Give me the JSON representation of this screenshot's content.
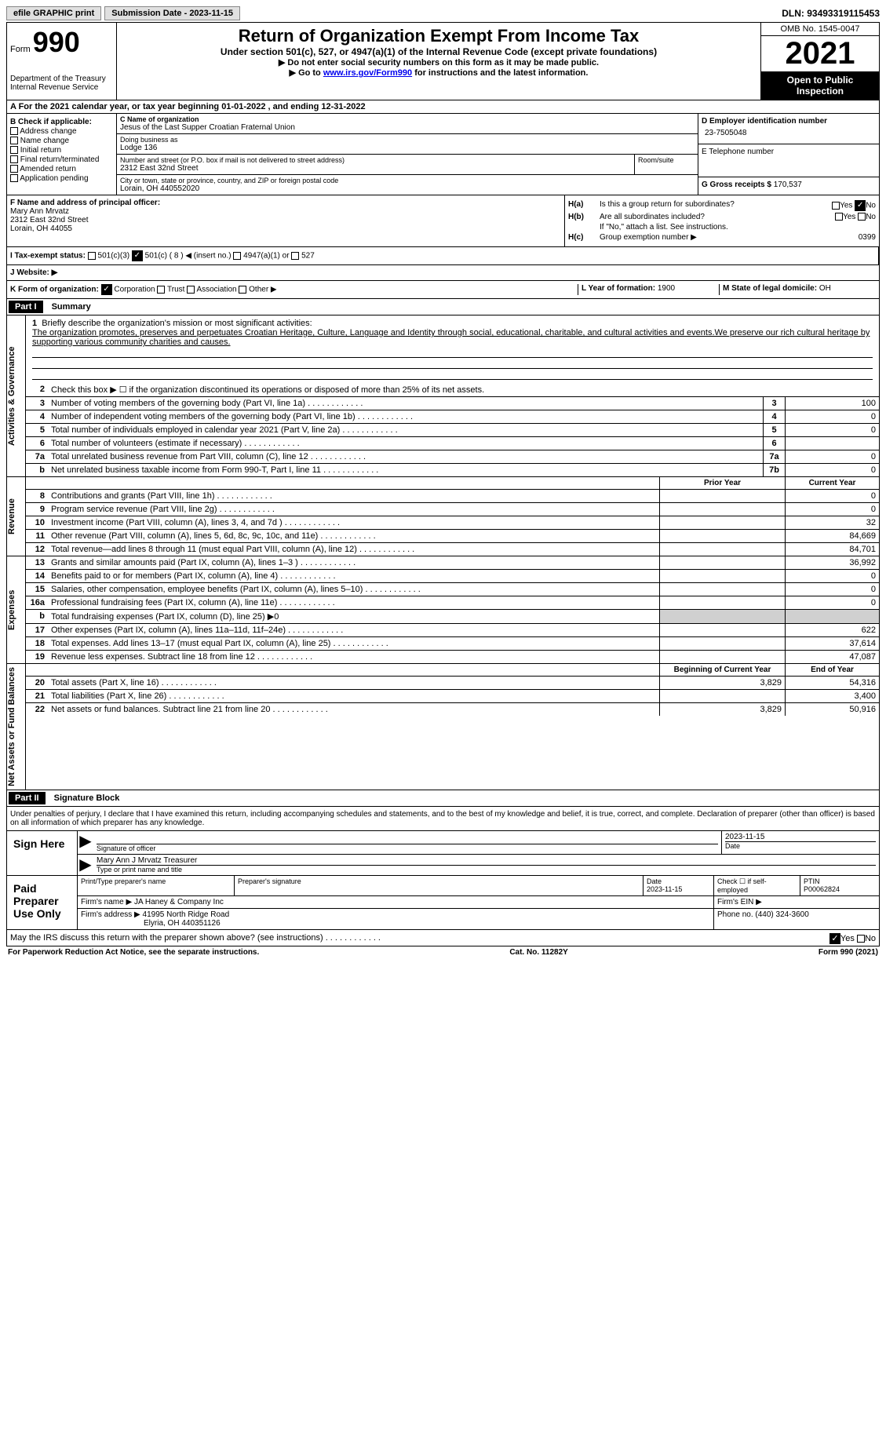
{
  "topbar": {
    "efile": "efile GRAPHIC print",
    "sub_date_label": "Submission Date - 2023-11-15",
    "dln": "DLN: 93493319115453"
  },
  "header": {
    "form_label": "Form",
    "form_number": "990",
    "title": "Return of Organization Exempt From Income Tax",
    "subtitle": "Under section 501(c), 527, or 4947(a)(1) of the Internal Revenue Code (except private foundations)",
    "instruction1": "▶ Do not enter social security numbers on this form as it may be made public.",
    "instruction2_pre": "▶ Go to ",
    "instruction2_link": "www.irs.gov/Form990",
    "instruction2_post": " for instructions and the latest information.",
    "dept": "Department of the Treasury",
    "irs": "Internal Revenue Service",
    "omb": "OMB No. 1545-0047",
    "year": "2021",
    "inspection": "Open to Public Inspection"
  },
  "row_a": "A For the 2021 calendar year, or tax year beginning 01-01-2022   , and ending 12-31-2022",
  "section_b": {
    "label": "B Check if applicable:",
    "addr": "Address change",
    "name": "Name change",
    "initial": "Initial return",
    "final": "Final return/terminated",
    "amended": "Amended return",
    "app": "Application pending"
  },
  "section_c": {
    "name_label": "C Name of organization",
    "org_name": "Jesus of the Last Supper Croatian Fraternal Union",
    "dba_label": "Doing business as",
    "dba": "Lodge 136",
    "street_label": "Number and street (or P.O. box if mail is not delivered to street address)",
    "street": "2312 East 32nd Street",
    "room_label": "Room/suite",
    "city_label": "City or town, state or province, country, and ZIP or foreign postal code",
    "city": "Lorain, OH  440552020"
  },
  "section_d": {
    "ein_label": "D Employer identification number",
    "ein": "23-7505048",
    "phone_label": "E Telephone number",
    "receipts_label": "G Gross receipts $",
    "receipts": "170,537"
  },
  "section_f": {
    "label": "F Name and address of principal officer:",
    "name": "Mary Ann Mrvatz",
    "street": "2312 East 32nd Street",
    "city": "Lorain, OH  44055"
  },
  "section_h": {
    "ha": "H(a)",
    "ha_text": "Is this a group return for subordinates?",
    "hb": "H(b)",
    "hb_text": "Are all subordinates included?",
    "hb_note": "If \"No,\" attach a list. See instructions.",
    "hc": "H(c)",
    "hc_text": "Group exemption number ▶",
    "hc_val": "0399",
    "yes": "Yes",
    "no": "No"
  },
  "row_i": {
    "label": "I    Tax-exempt status:",
    "opt1": "501(c)(3)",
    "opt2": "501(c) ( 8 ) ◀ (insert no.)",
    "opt3": "4947(a)(1) or",
    "opt4": "527"
  },
  "row_j": "J    Website: ▶",
  "row_k": {
    "label": "K Form of organization:",
    "corp": "Corporation",
    "trust": "Trust",
    "assoc": "Association",
    "other": "Other ▶",
    "l_label": "L Year of formation:",
    "l_val": "1900",
    "m_label": "M State of legal domicile:",
    "m_val": "OH"
  },
  "part1": {
    "label": "Part I",
    "title": "Summary",
    "q1": "Briefly describe the organization's mission or most significant activities:",
    "mission": "The organization promotes, preserves and perpetuates Croatian Heritage, Culture, Language and Identity through social, educational, charitable, and cultural activities and events.We preserve our rich cultural heritage by supporting various community charities and causes.",
    "q2": "Check this box ▶ ☐ if the organization discontinued its operations or disposed of more than 25% of its net assets.",
    "rows_nums": [
      {
        "n": "3",
        "d": "Number of voting members of the governing body (Part VI, line 1a)",
        "b": "3",
        "v": "100"
      },
      {
        "n": "4",
        "d": "Number of independent voting members of the governing body (Part VI, line 1b)",
        "b": "4",
        "v": "0"
      },
      {
        "n": "5",
        "d": "Total number of individuals employed in calendar year 2021 (Part V, line 2a)",
        "b": "5",
        "v": "0"
      },
      {
        "n": "6",
        "d": "Total number of volunteers (estimate if necessary)",
        "b": "6",
        "v": ""
      },
      {
        "n": "7a",
        "d": "Total unrelated business revenue from Part VIII, column (C), line 12",
        "b": "7a",
        "v": "0"
      },
      {
        "n": "b",
        "d": "Net unrelated business taxable income from Form 990-T, Part I, line 11",
        "b": "7b",
        "v": "0"
      }
    ],
    "prior_label": "Prior Year",
    "current_label": "Current Year",
    "begin_label": "Beginning of Current Year",
    "end_label": "End of Year",
    "revenue": [
      {
        "n": "8",
        "d": "Contributions and grants (Part VIII, line 1h)",
        "p": "",
        "c": "0"
      },
      {
        "n": "9",
        "d": "Program service revenue (Part VIII, line 2g)",
        "p": "",
        "c": "0"
      },
      {
        "n": "10",
        "d": "Investment income (Part VIII, column (A), lines 3, 4, and 7d )",
        "p": "",
        "c": "32"
      },
      {
        "n": "11",
        "d": "Other revenue (Part VIII, column (A), lines 5, 6d, 8c, 9c, 10c, and 11e)",
        "p": "",
        "c": "84,669"
      },
      {
        "n": "12",
        "d": "Total revenue—add lines 8 through 11 (must equal Part VIII, column (A), line 12)",
        "p": "",
        "c": "84,701"
      }
    ],
    "expenses": [
      {
        "n": "13",
        "d": "Grants and similar amounts paid (Part IX, column (A), lines 1–3 )",
        "p": "",
        "c": "36,992"
      },
      {
        "n": "14",
        "d": "Benefits paid to or for members (Part IX, column (A), line 4)",
        "p": "",
        "c": "0"
      },
      {
        "n": "15",
        "d": "Salaries, other compensation, employee benefits (Part IX, column (A), lines 5–10)",
        "p": "",
        "c": "0"
      },
      {
        "n": "16a",
        "d": "Professional fundraising fees (Part IX, column (A), line 11e)",
        "p": "",
        "c": "0"
      },
      {
        "n": "b",
        "d": "Total fundraising expenses (Part IX, column (D), line 25) ▶0",
        "gray": true
      },
      {
        "n": "17",
        "d": "Other expenses (Part IX, column (A), lines 11a–11d, 11f–24e)",
        "p": "",
        "c": "622"
      },
      {
        "n": "18",
        "d": "Total expenses. Add lines 13–17 (must equal Part IX, column (A), line 25)",
        "p": "",
        "c": "37,614"
      },
      {
        "n": "19",
        "d": "Revenue less expenses. Subtract line 18 from line 12",
        "p": "",
        "c": "47,087"
      }
    ],
    "netassets": [
      {
        "n": "20",
        "d": "Total assets (Part X, line 16)",
        "p": "3,829",
        "c": "54,316"
      },
      {
        "n": "21",
        "d": "Total liabilities (Part X, line 26)",
        "p": "",
        "c": "3,400"
      },
      {
        "n": "22",
        "d": "Net assets or fund balances. Subtract line 21 from line 20",
        "p": "3,829",
        "c": "50,916"
      }
    ],
    "side_gov": "Activities & Governance",
    "side_rev": "Revenue",
    "side_exp": "Expenses",
    "side_net": "Net Assets or Fund Balances"
  },
  "part2": {
    "label": "Part II",
    "title": "Signature Block",
    "penalty": "Under penalties of perjury, I declare that I have examined this return, including accompanying schedules and statements, and to the best of my knowledge and belief, it is true, correct, and complete. Declaration of preparer (other than officer) is based on all information of which preparer has any knowledge.",
    "sign_here": "Sign Here",
    "sig_officer": "Signature of officer",
    "sig_date": "2023-11-15",
    "date_label": "Date",
    "officer_name": "Mary Ann J Mrvatz  Treasurer",
    "type_name": "Type or print name and title",
    "paid": "Paid Preparer Use Only",
    "prep_name_label": "Print/Type preparer's name",
    "prep_sig_label": "Preparer's signature",
    "prep_date_label": "Date",
    "prep_date": "2023-11-15",
    "check_self": "Check ☐ if self-employed",
    "ptin_label": "PTIN",
    "ptin": "P00062824",
    "firm_name_label": "Firm's name    ▶",
    "firm_name": "JA Haney & Company Inc",
    "firm_ein_label": "Firm's EIN ▶",
    "firm_addr_label": "Firm's address ▶",
    "firm_addr1": "41995 North Ridge Road",
    "firm_addr2": "Elyria, OH  440351126",
    "firm_phone_label": "Phone no.",
    "firm_phone": "(440) 324-3600",
    "discuss": "May the IRS discuss this return with the preparer shown above? (see instructions)",
    "yes": "Yes",
    "no": "No"
  },
  "footer": {
    "paperwork": "For Paperwork Reduction Act Notice, see the separate instructions.",
    "cat": "Cat. No. 11282Y",
    "form": "Form 990 (2021)"
  }
}
